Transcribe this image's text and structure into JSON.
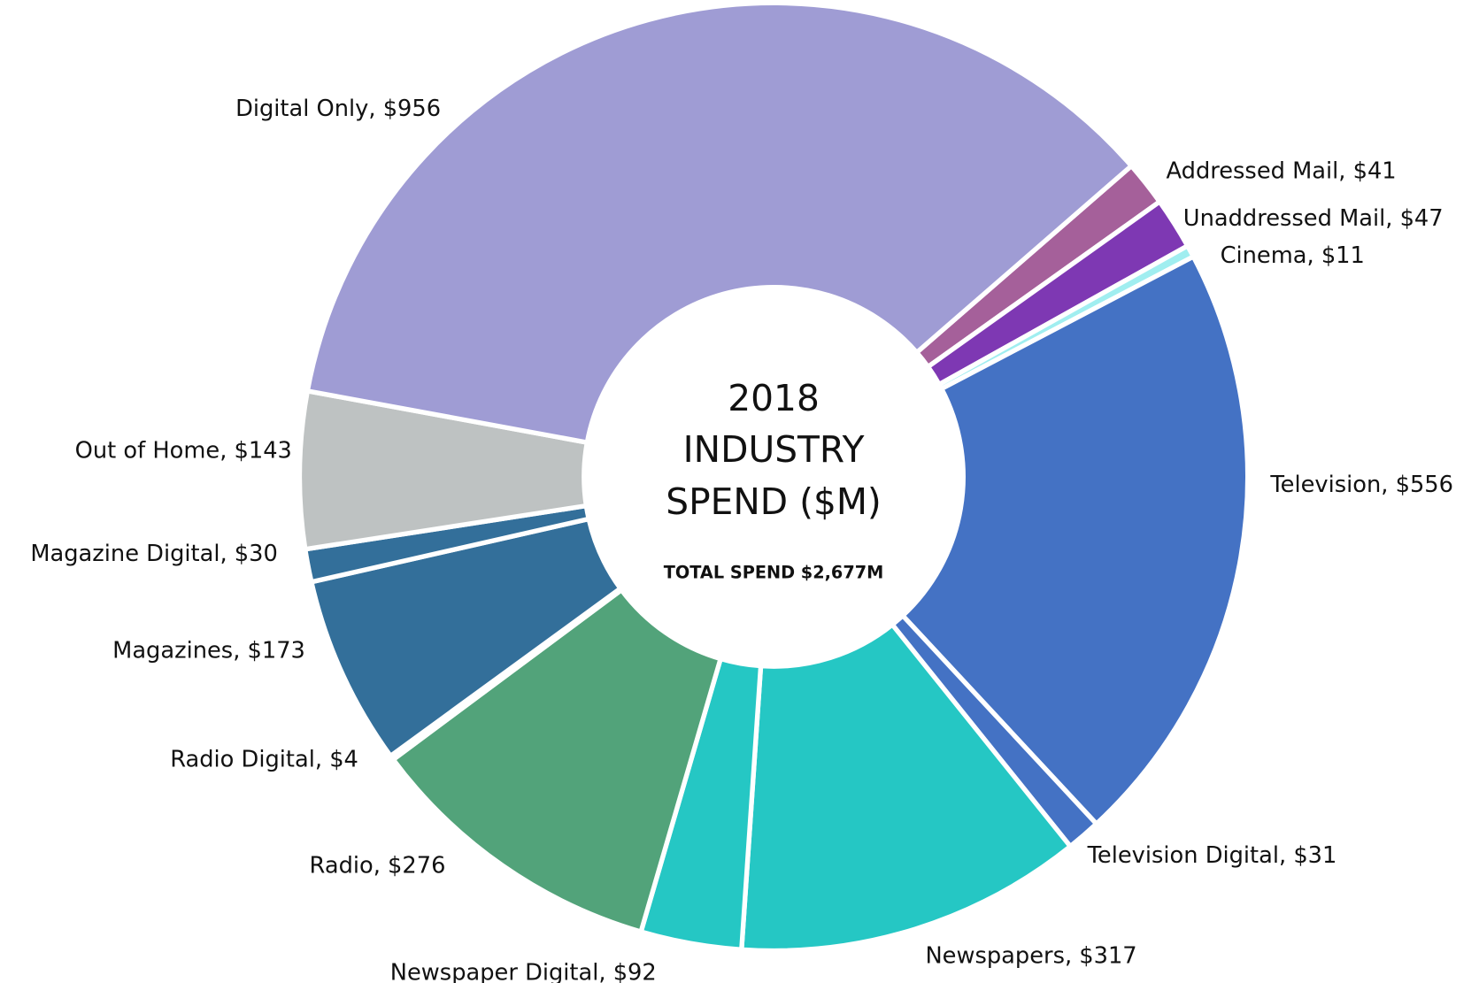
{
  "chart_data": {
    "type": "donut",
    "title": [
      "2018",
      "INDUSTRY",
      "SPEND ($M)"
    ],
    "subtitle": "TOTAL SPEND $2,677M",
    "values": [
      41,
      47,
      11,
      556,
      31,
      317,
      92,
      276,
      4,
      173,
      30,
      143,
      956
    ],
    "value_labels": [
      "Addressed Mail, $41",
      "Unaddressed Mail, $47",
      "Cinema, $11",
      "Television, $556",
      "Television Digital, $31",
      "Newspapers, $317",
      "Newspaper Digital, $92",
      "Radio, $276",
      "Radio Digital, $4",
      "Magazines, $173",
      "Magazine Digital, $30",
      "Out of Home, $143",
      "Digital Only, $956"
    ],
    "colors": [
      "#a5609a",
      "#7e38b3",
      "#a0eef0",
      "#4472c4",
      "#4472c4",
      "#25c7c4",
      "#25c7c4",
      "#52a37a",
      "#52a37a",
      "#336f9a",
      "#336f9a",
      "#bec2c2",
      "#9f9cd4"
    ]
  }
}
